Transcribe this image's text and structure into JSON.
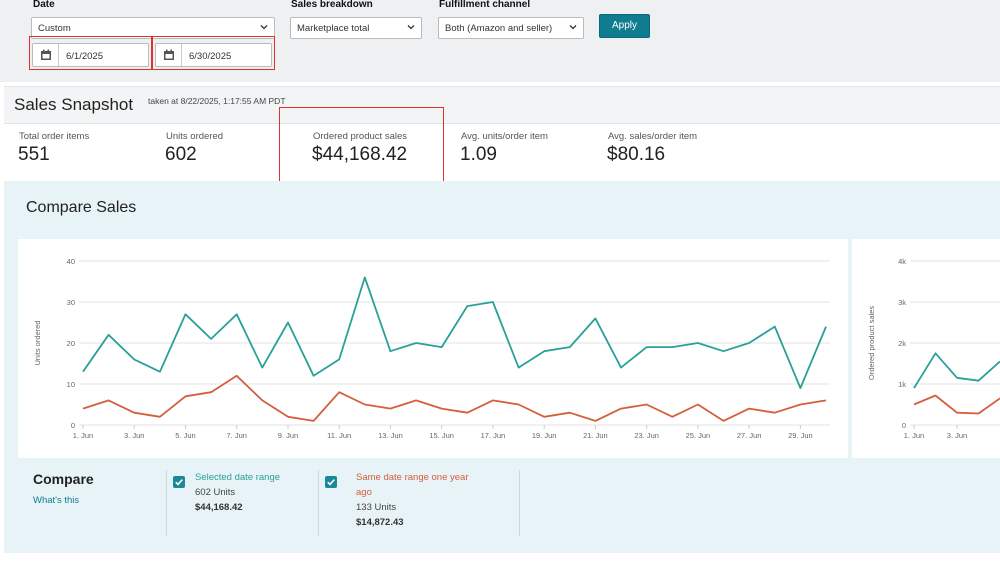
{
  "filters": {
    "date": {
      "label": "Date",
      "selected": "Custom",
      "start": "6/1/2025",
      "end": "6/30/2025"
    },
    "sales_breakdown": {
      "label": "Sales breakdown",
      "selected": "Marketplace total"
    },
    "fulfillment_channel": {
      "label": "Fulfillment channel",
      "selected": "Both (Amazon and seller)"
    },
    "apply_label": "Apply"
  },
  "snapshot": {
    "title": "Sales Snapshot",
    "taken": "taken at 8/22/2025, 1:17:55 AM PDT",
    "metrics": [
      {
        "label": "Total order items",
        "value": "551"
      },
      {
        "label": "Units ordered",
        "value": "602"
      },
      {
        "label": "Ordered product sales",
        "value": "$44,168.42"
      },
      {
        "label": "Avg. units/order item",
        "value": "1.09"
      },
      {
        "label": "Avg. sales/order item",
        "value": "$80.16"
      }
    ]
  },
  "compare": {
    "title": "Compare Sales",
    "footer_title": "Compare",
    "whats_this": "What's this",
    "legend": [
      {
        "name": "Selected date range",
        "line1": "602 Units",
        "line2": "$44,168.42",
        "color": "#2aa198"
      },
      {
        "name_line1": "Same date range one year",
        "name_line2": "ago",
        "line1": "133 Units",
        "line2": "$14,872.43",
        "color": "#d35f3c"
      }
    ]
  },
  "chart_data": [
    {
      "type": "line",
      "ylabel": "Units ordered",
      "ylim": [
        0,
        40
      ],
      "yticks": [
        "0",
        "10",
        "20",
        "30",
        "40"
      ],
      "x": [
        1,
        2,
        3,
        4,
        5,
        6,
        7,
        8,
        9,
        10,
        11,
        12,
        13,
        14,
        15,
        16,
        17,
        18,
        19,
        20,
        21,
        22,
        23,
        24,
        25,
        26,
        27,
        28,
        29,
        30
      ],
      "xtick_labels": [
        "1. Jun",
        "3. Jun",
        "5. Jun",
        "7. Jun",
        "9. Jun",
        "11. Jun",
        "13. Jun",
        "15. Jun",
        "17. Jun",
        "19. Jun",
        "21. Jun",
        "23. Jun",
        "25. Jun",
        "27. Jun",
        "29. Jun"
      ],
      "grid": true,
      "series": [
        {
          "name": "Selected date range",
          "color": "#2aa198",
          "values": [
            13,
            22,
            16,
            13,
            27,
            21,
            27,
            14,
            25,
            12,
            16,
            36,
            18,
            20,
            19,
            29,
            30,
            14,
            18,
            19,
            26,
            14,
            19,
            19,
            20,
            18,
            20,
            24,
            9,
            24
          ]
        },
        {
          "name": "Same date range one year ago",
          "color": "#d35f3c",
          "values": [
            4,
            6,
            3,
            2,
            7,
            8,
            12,
            6,
            2,
            1,
            8,
            5,
            4,
            6,
            4,
            3,
            6,
            5,
            2,
            3,
            1,
            4,
            5,
            2,
            5,
            1,
            4,
            3,
            5,
            6
          ]
        }
      ]
    },
    {
      "type": "line",
      "ylabel": "Ordered product sales",
      "ylim": [
        0,
        4000
      ],
      "yticks": [
        "0",
        "1k",
        "2k",
        "3k",
        "4k"
      ],
      "x": [
        1,
        2,
        3,
        4,
        5
      ],
      "xtick_labels": [
        "1. Jun",
        "3. Jun"
      ],
      "grid": true,
      "series": [
        {
          "name": "Selected date range",
          "color": "#2aa198",
          "values": [
            900,
            1750,
            1150,
            1080,
            1550
          ]
        },
        {
          "name": "Same date range one year ago",
          "color": "#d35f3c",
          "values": [
            500,
            720,
            300,
            280,
            650
          ]
        }
      ]
    }
  ]
}
